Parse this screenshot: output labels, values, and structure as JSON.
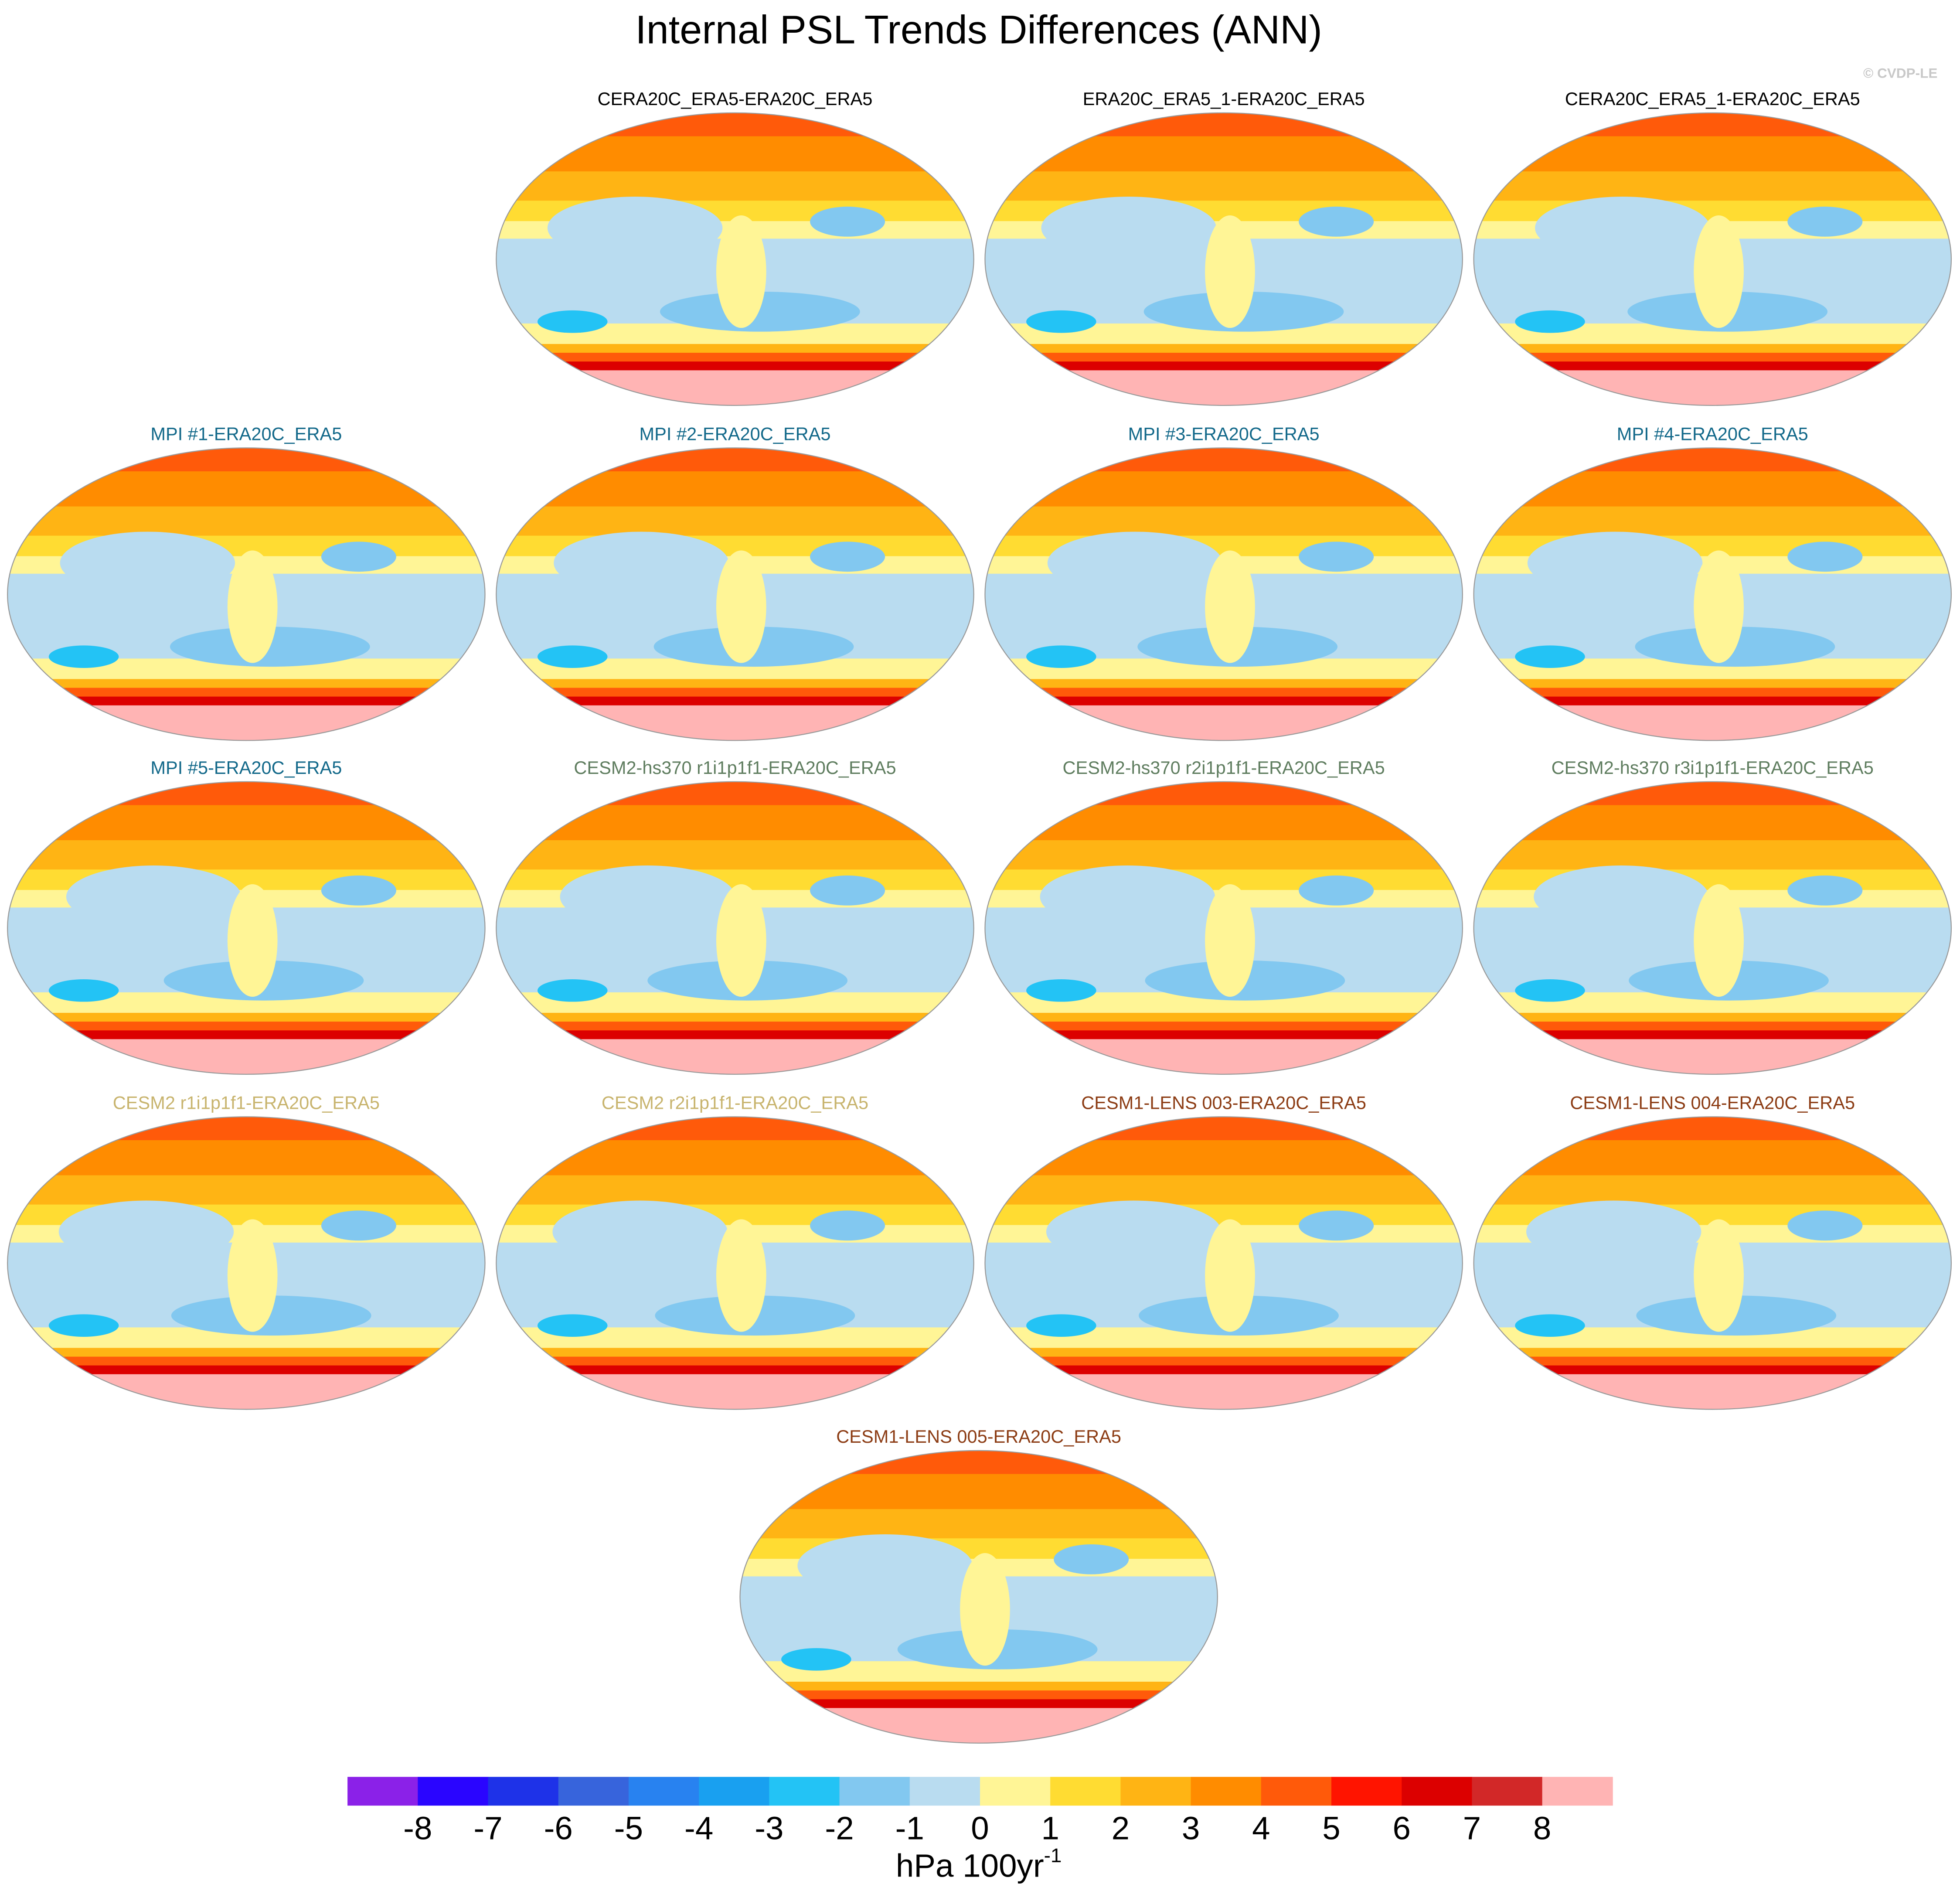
{
  "title": "Internal PSL Trends Differences (ANN)",
  "credit": "© CVDP-LE",
  "panels": [
    {
      "title": "CERA20C_ERA5-ERA20C_ERA5",
      "color": "#000000"
    },
    {
      "title": "ERA20C_ERA5_1-ERA20C_ERA5",
      "color": "#000000"
    },
    {
      "title": "CERA20C_ERA5_1-ERA20C_ERA5",
      "color": "#000000"
    },
    {
      "title": "MPI #1-ERA20C_ERA5",
      "color": "#13698a"
    },
    {
      "title": "MPI #2-ERA20C_ERA5",
      "color": "#13698a"
    },
    {
      "title": "MPI #3-ERA20C_ERA5",
      "color": "#13698a"
    },
    {
      "title": "MPI #4-ERA20C_ERA5",
      "color": "#13698a"
    },
    {
      "title": "MPI #5-ERA20C_ERA5",
      "color": "#13698a"
    },
    {
      "title": "CESM2-hs370 r1i1p1f1-ERA20C_ERA5",
      "color": "#5f7d5f"
    },
    {
      "title": "CESM2-hs370 r2i1p1f1-ERA20C_ERA5",
      "color": "#5f7d5f"
    },
    {
      "title": "CESM2-hs370 r3i1p1f1-ERA20C_ERA5",
      "color": "#5f7d5f"
    },
    {
      "title": "CESM2 r1i1p1f1-ERA20C_ERA5",
      "color": "#c8b46e"
    },
    {
      "title": "CESM2 r2i1p1f1-ERA20C_ERA5",
      "color": "#c8b46e"
    },
    {
      "title": "CESM1-LENS 003-ERA20C_ERA5",
      "color": "#8c3c14"
    },
    {
      "title": "CESM1-LENS 004-ERA20C_ERA5",
      "color": "#8c3c14"
    },
    {
      "title": "CESM1-LENS 005-ERA20C_ERA5",
      "color": "#8c3c14"
    }
  ],
  "colorbar": {
    "levels": [
      -8,
      -7,
      -6,
      -5,
      -4,
      -3,
      -2,
      -1,
      0,
      1,
      2,
      3,
      4,
      5,
      6,
      7,
      8
    ],
    "colors": [
      "#8b21e8",
      "#2a05ff",
      "#1e32e8",
      "#3764dc",
      "#2882f0",
      "#19a0f0",
      "#23c3f5",
      "#82c8f0",
      "#b9dcf0",
      "#fff596",
      "#ffdc32",
      "#ffb414",
      "#ff8c00",
      "#ff5a0a",
      "#ff1400",
      "#dc0000",
      "#d22828",
      "#ffb4b4"
    ],
    "units": "hPa 100yr",
    "units_exponent": "-1"
  }
}
